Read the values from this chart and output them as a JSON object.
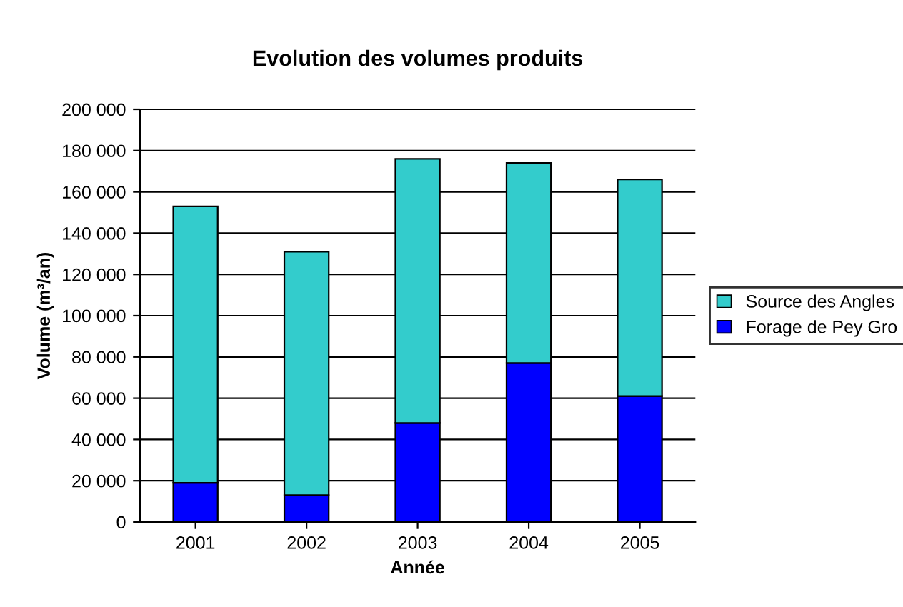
{
  "chart_data": {
    "type": "bar",
    "title": "Evolution des volumes produits",
    "xlabel": "Année",
    "ylabel": "Volume (m³/an)",
    "categories": [
      "2001",
      "2002",
      "2003",
      "2004",
      "2005"
    ],
    "stacked": true,
    "series": [
      {
        "name": "Forage de Pey Gro",
        "color": "#0000ff",
        "values": [
          19000,
          13000,
          48000,
          77000,
          61000
        ]
      },
      {
        "name": "Source des Angles",
        "color": "#33cccc",
        "values": [
          134000,
          118000,
          128000,
          97000,
          105000
        ]
      }
    ],
    "ylim": [
      0,
      200000
    ],
    "yticks": [
      {
        "value": 0,
        "label": "0"
      },
      {
        "value": 20000,
        "label": "20 000"
      },
      {
        "value": 40000,
        "label": "40 000"
      },
      {
        "value": 60000,
        "label": "60 000"
      },
      {
        "value": 80000,
        "label": "80 000"
      },
      {
        "value": 100000,
        "label": "100 000"
      },
      {
        "value": 120000,
        "label": "120 000"
      },
      {
        "value": 140000,
        "label": "140 000"
      },
      {
        "value": 160000,
        "label": "160 000"
      },
      {
        "value": 180000,
        "label": "180 000"
      },
      {
        "value": 200000,
        "label": "200 000"
      }
    ],
    "grid": "y",
    "legend": "right"
  }
}
